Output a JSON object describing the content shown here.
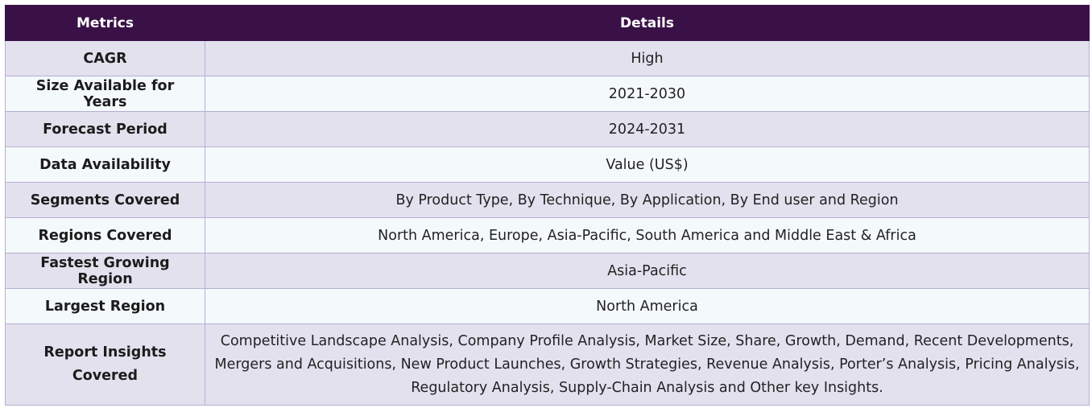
{
  "table": {
    "headers": [
      "Metrics",
      "Details"
    ],
    "rows": [
      {
        "metric": "CAGR",
        "details": "High"
      },
      {
        "metric": "Size Available for Years",
        "details": "2021-2030"
      },
      {
        "metric": "Forecast Period",
        "details": "2024-2031"
      },
      {
        "metric": "Data Availability",
        "details": "Value (US$)"
      },
      {
        "metric": "Segments Covered",
        "details": "By Product Type, By Technique, By Application, By End user and Region"
      },
      {
        "metric": "Regions Covered",
        "details": "North America, Europe, Asia-Pacific, South America and Middle East & Africa"
      },
      {
        "metric": "Fastest Growing Region",
        "details": "Asia-Pacific"
      },
      {
        "metric": "Largest Region",
        "details": "North America"
      },
      {
        "metric": "Report Insights Covered",
        "details": "Competitive Landscape Analysis, Company Profile Analysis, Market Size, Share, Growth, Demand, Recent Developments, Mergers and Acquisitions, New Product Launches, Growth Strategies, Revenue Analysis, Porter’s Analysis, Pricing Analysis, Regulatory Analysis, Supply-Chain Analysis and Other key Insights."
      }
    ]
  },
  "colors": {
    "header_bg": "#3a1147",
    "row_alt_bg": "#e4e1ef",
    "row_bg": "#f4f9fc",
    "border": "#b7aed2"
  }
}
